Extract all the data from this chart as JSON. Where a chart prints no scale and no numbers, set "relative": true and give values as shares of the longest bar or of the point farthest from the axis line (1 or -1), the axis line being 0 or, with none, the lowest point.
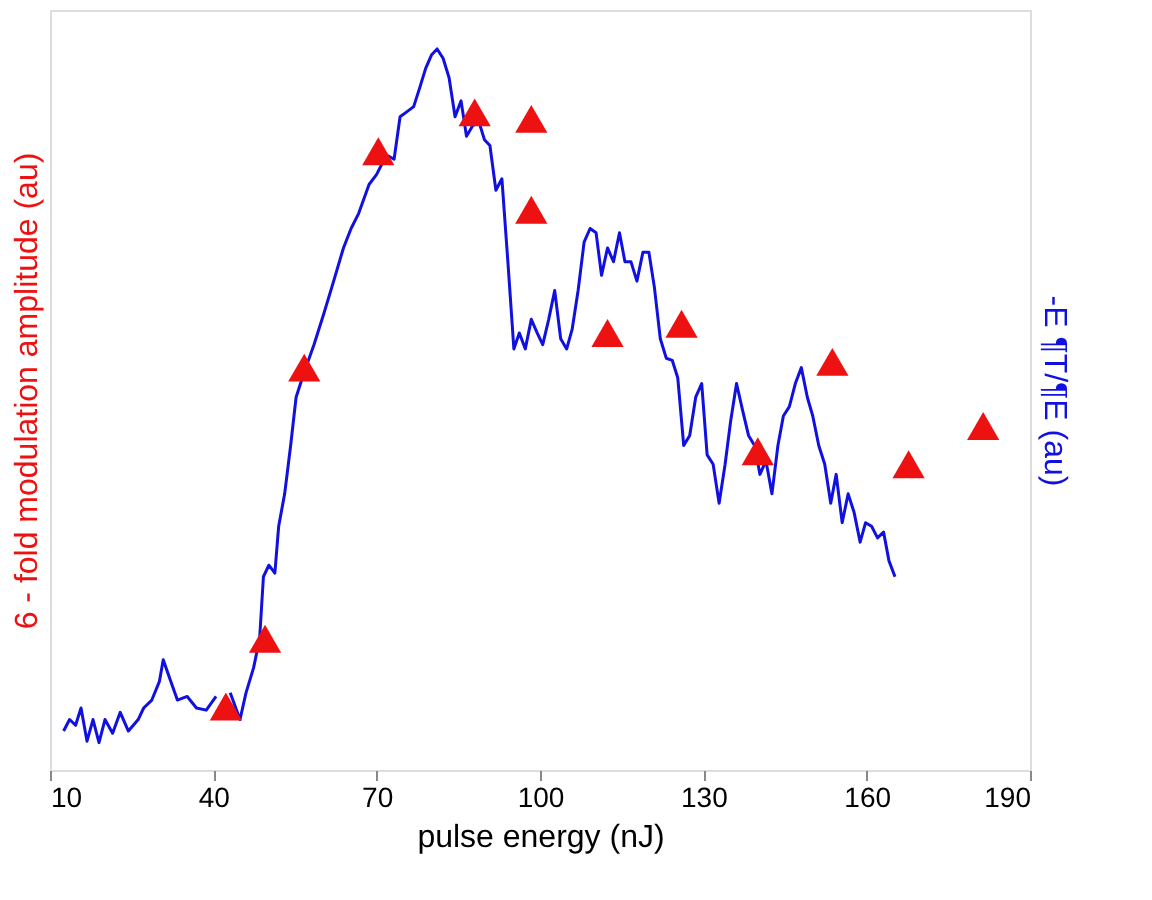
{
  "chart_data": {
    "type": "line",
    "relative": true,
    "xlabel": "pulse energy (nJ)",
    "ylabel": "6 - fold modulation amplitude (au)",
    "y2label": "-E ¶T/¶E (au)",
    "xlim": [
      10,
      190
    ],
    "xticks": [
      10,
      40,
      70,
      100,
      130,
      160,
      190
    ],
    "grid": false,
    "series": [
      {
        "color": "#1010e0",
        "axis": "y2",
        "marker": "none",
        "x": [
          12.5,
          13.6,
          14.7,
          15.7,
          16.8,
          17.9,
          19.0,
          20.1,
          21.5,
          22.9,
          24.4,
          26.2,
          27.2,
          28.7,
          30.1,
          30.8,
          31.9,
          33.4,
          35.2,
          36.9,
          38.7,
          40.5,
          41.6,
          43.1,
          44.9,
          46.0,
          47.4,
          48.5,
          49.2,
          50.2,
          51.3,
          52.0,
          53.1,
          54.2,
          55.2,
          56.7,
          58.5,
          60.3,
          62.1,
          63.9,
          65.3,
          66.7,
          68.6,
          70.0,
          71.8,
          73.2,
          74.3,
          75.4,
          76.8,
          77.9,
          79.0,
          80.1,
          81.1,
          82.2,
          83.3,
          84.4,
          85.5,
          86.5,
          87.6,
          88.7,
          89.8,
          90.8,
          91.9,
          93.0,
          94.1,
          95.2,
          96.2,
          97.3,
          98.4,
          99.5,
          100.5,
          101.6,
          102.7,
          103.8,
          104.9,
          105.9,
          107.0,
          108.1,
          109.2,
          110.3,
          111.3,
          112.4,
          113.5,
          114.6,
          115.6,
          116.7,
          117.8,
          118.9,
          120.0,
          121.0,
          122.1,
          123.2,
          124.3,
          125.3,
          126.4,
          127.5,
          128.6,
          129.7,
          130.7,
          131.8,
          132.9,
          134.0,
          135.0,
          136.1,
          137.2,
          138.3,
          139.4,
          140.4,
          141.5,
          142.6,
          143.7,
          144.7,
          145.8,
          146.9,
          148.0,
          149.1,
          150.1,
          151.2,
          152.3,
          153.4,
          154.4,
          155.5,
          156.6,
          157.7,
          158.8,
          159.8,
          160.9,
          162.0,
          163.1,
          164.1,
          165.2
        ],
        "values": [
          0.054,
          0.07,
          0.062,
          0.086,
          0.04,
          0.07,
          0.038,
          0.07,
          0.051,
          0.08,
          0.054,
          0.07,
          0.086,
          0.097,
          0.123,
          0.153,
          0.129,
          0.097,
          0.102,
          0.086,
          0.083,
          0.102,
          null,
          0.107,
          0.07,
          0.107,
          0.142,
          0.182,
          0.268,
          0.284,
          0.273,
          0.338,
          0.383,
          0.45,
          0.517,
          0.552,
          0.59,
          0.633,
          0.678,
          0.724,
          0.751,
          0.772,
          0.812,
          0.826,
          0.853,
          0.847,
          0.906,
          0.912,
          0.92,
          0.946,
          0.973,
          0.992,
          1,
          0.987,
          0.96,
          0.906,
          0.928,
          0.879,
          0.893,
          0.901,
          0.874,
          0.866,
          0.804,
          0.82,
          0.705,
          0.584,
          0.606,
          0.584,
          0.625,
          0.606,
          0.59,
          0.625,
          0.665,
          0.598,
          0.584,
          0.611,
          0.665,
          0.732,
          0.751,
          0.745,
          0.686,
          0.724,
          0.705,
          0.745,
          0.705,
          0.705,
          0.678,
          0.718,
          0.718,
          0.67,
          0.598,
          0.571,
          0.568,
          0.544,
          0.45,
          0.464,
          0.517,
          0.536,
          0.437,
          0.424,
          0.37,
          0.424,
          0.483,
          0.536,
          0.499,
          0.464,
          0.45,
          0.41,
          0.429,
          0.383,
          0.45,
          0.491,
          0.504,
          0.536,
          0.558,
          0.517,
          0.491,
          0.45,
          0.424,
          0.37,
          0.41,
          0.343,
          0.383,
          0.357,
          0.316,
          0.343,
          0.338,
          0.322,
          0.33,
          0.29,
          0.268
        ]
      },
      {
        "type": "scatter",
        "color": "#ee1111",
        "marker": "triangle",
        "x": [
          42.3,
          49.5,
          56.7,
          70.3,
          88.0,
          98.4,
          98.4,
          112.4,
          126.0,
          140.0,
          153.7,
          167.7,
          181.4
        ],
        "values": [
          0.088,
          0.182,
          0.558,
          0.858,
          0.912,
          0.903,
          0.777,
          0.606,
          0.619,
          0.442,
          0.566,
          0.424,
          0.477
        ]
      }
    ]
  }
}
